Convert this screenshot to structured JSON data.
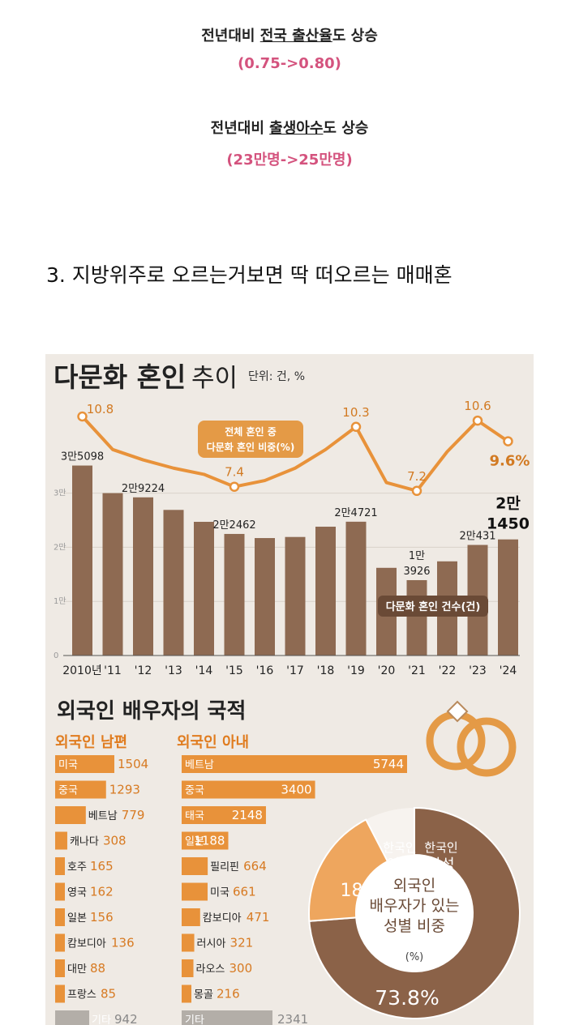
{
  "post": {
    "line1_prefix": "전년대비 ",
    "line1_underlined": "전국 출산율",
    "line1_suffix": "도 상승",
    "line1_sub": "(0.75->0.80)",
    "line2_prefix": "전년대비 ",
    "line2_underlined": "출생아수",
    "line2_suffix": "도 상승",
    "line2_sub": "(23만명->25만명)",
    "section_heading": "3. 지방위주로 오르는거보면 딱 떠오르는 매매혼"
  },
  "colors": {
    "pink_text": "#d4537e",
    "orange": "#e8923a",
    "bar_brown": "#8e6a52",
    "donut_brown": "#8b6248",
    "donut_light": "#eea65e",
    "info_bg": "#efeae4",
    "gray_bar": "#b3aea8"
  },
  "infographic": {
    "title_main": "다문화 혼인",
    "title_sub": "추이",
    "unit": "단위: 건, %",
    "nationality_title": "외국인 배우자의 국적",
    "husband_heading": "외국인 남편",
    "wife_heading": "외국인 아내"
  },
  "chart_data": [
    {
      "type": "bar",
      "title": "다문화 혼인 추이",
      "series_name": "다문화 혼인 건수(건)",
      "categories": [
        "2010년",
        "'11",
        "'12",
        "'13",
        "'14",
        "'15",
        "'16",
        "'17",
        "'18",
        "'19",
        "'20",
        "'21",
        "'22",
        "'23",
        "'24"
      ],
      "values": [
        35098,
        30000,
        29224,
        26900,
        24700,
        22462,
        21700,
        21900,
        23800,
        24721,
        16200,
        13926,
        17400,
        20431,
        21450
      ],
      "value_labels": [
        "3만5098",
        "",
        "2만9224",
        "",
        "",
        "2만2462",
        "",
        "",
        "",
        "2만4721",
        "",
        "1만3926",
        "",
        "2만431",
        "2만1450"
      ],
      "y_tick_labels": [
        "0",
        "1만",
        "2만",
        "3만"
      ],
      "ylim": [
        0,
        36000
      ],
      "line_series": {
        "name": "전체 혼인 중 다문화 혼인 비중(%)",
        "values": [
          10.8,
          9.2,
          8.7,
          8.3,
          8.0,
          7.4,
          7.7,
          8.3,
          9.2,
          10.3,
          7.6,
          7.2,
          9.1,
          10.6,
          9.6
        ],
        "value_labels": [
          "10.8",
          "",
          "",
          "",
          "",
          "7.4",
          "",
          "",
          "",
          "10.3",
          "",
          "7.2",
          "",
          "10.6",
          "9.6%"
        ]
      }
    },
    {
      "type": "bar",
      "title": "외국인 남편",
      "categories": [
        "미국",
        "중국",
        "베트남",
        "캐나다",
        "호주",
        "영국",
        "일본",
        "캄보디아",
        "대만",
        "프랑스",
        "기타"
      ],
      "values": [
        1504,
        1293,
        779,
        308,
        165,
        162,
        156,
        136,
        88,
        85,
        942
      ]
    },
    {
      "type": "bar",
      "title": "외국인 아내",
      "categories": [
        "베트남",
        "중국",
        "태국",
        "일본",
        "필리핀",
        "미국",
        "캄보디아",
        "러시아",
        "라오스",
        "몽골",
        "기타"
      ],
      "values": [
        5744,
        3400,
        2148,
        1188,
        664,
        661,
        471,
        321,
        300,
        216,
        2341
      ]
    },
    {
      "type": "pie",
      "title_lines": [
        "외국인",
        "배우자가 있는",
        "성별 비중"
      ],
      "unit": "(%)",
      "slices": [
        {
          "label": "한국인 남성",
          "value": 73.8,
          "value_label": "73.8%"
        },
        {
          "label": "한국인 여성",
          "value": 18.6,
          "value_label": "18.6"
        }
      ]
    }
  ]
}
